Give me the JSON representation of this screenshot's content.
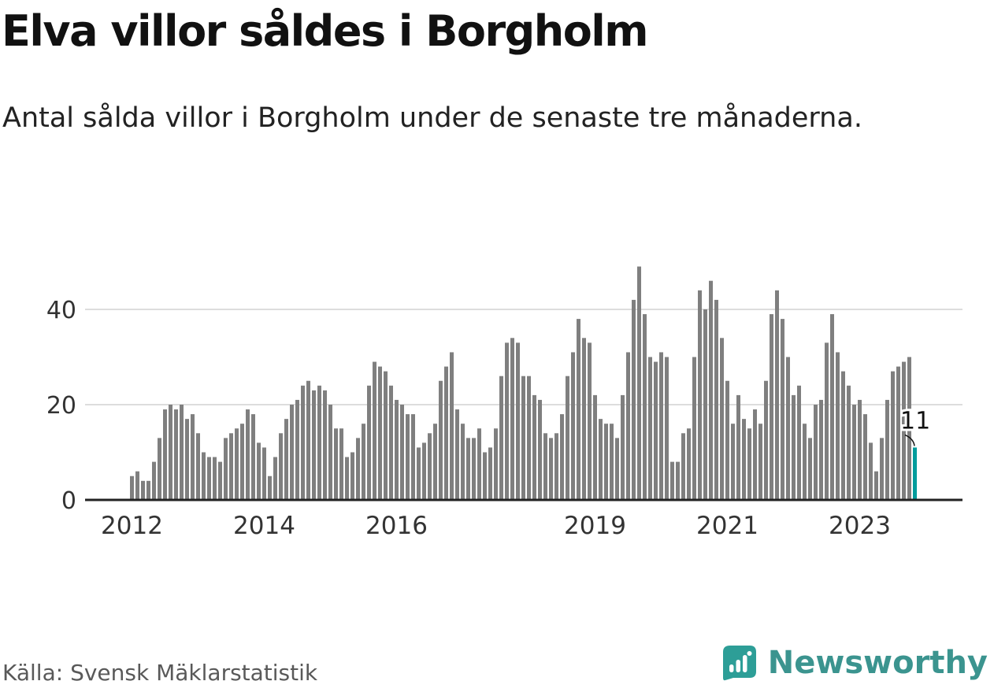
{
  "header": {
    "title": "Elva villor såldes i Borgholm",
    "subtitle": "Antal sålda villor i Borgholm under de senaste tre månaderna."
  },
  "footer": {
    "source": "Källa: Svensk Mäklarstatistik",
    "brand": "Newsworthy"
  },
  "colors": {
    "bar": "#7f7f7f",
    "highlight": "#009c9c",
    "axis": "#222222",
    "grid": "#dddddd",
    "label": "#333333",
    "annotation": "#111111",
    "brand": "#3b948f",
    "source": "#595959"
  },
  "chart_data": {
    "type": "bar",
    "title": "Elva villor såldes i Borgholm",
    "subtitle": "Antal sålda villor i Borgholm under de senaste tre månaderna.",
    "x_start": "2012-01",
    "x_end": "2023-11",
    "x_freq": "monthly",
    "values": [
      5,
      6,
      4,
      4,
      8,
      13,
      19,
      20,
      19,
      20,
      17,
      18,
      14,
      10,
      9,
      9,
      8,
      13,
      14,
      15,
      16,
      19,
      18,
      12,
      11,
      5,
      9,
      14,
      17,
      20,
      21,
      24,
      25,
      23,
      24,
      23,
      20,
      15,
      15,
      9,
      10,
      13,
      16,
      24,
      29,
      28,
      27,
      24,
      21,
      20,
      18,
      18,
      11,
      12,
      14,
      16,
      25,
      28,
      31,
      19,
      16,
      13,
      13,
      15,
      10,
      11,
      15,
      26,
      33,
      34,
      33,
      26,
      26,
      22,
      21,
      14,
      13,
      14,
      18,
      26,
      31,
      38,
      34,
      33,
      22,
      17,
      16,
      16,
      13,
      22,
      31,
      42,
      49,
      39,
      30,
      29,
      31,
      30,
      8,
      8,
      14,
      15,
      30,
      44,
      40,
      46,
      42,
      34,
      25,
      16,
      22,
      17,
      15,
      19,
      16,
      25,
      39,
      44,
      38,
      30,
      22,
      24,
      16,
      13,
      20,
      21,
      33,
      39,
      31,
      27,
      24,
      20,
      21,
      18,
      12,
      6,
      13,
      21,
      27,
      28,
      29,
      30,
      11
    ],
    "highlight_last": true,
    "last_value_label": "11",
    "yticks": [
      0,
      20,
      40
    ],
    "ylim": [
      0,
      52
    ],
    "xticks": [
      {
        "label": "2012",
        "month_index": 0
      },
      {
        "label": "2014",
        "month_index": 24
      },
      {
        "label": "2016",
        "month_index": 48
      },
      {
        "label": "2019",
        "month_index": 84
      },
      {
        "label": "2021",
        "month_index": 108
      },
      {
        "label": "2023",
        "month_index": 132
      }
    ],
    "grid": "horizontal",
    "legend": "none"
  }
}
